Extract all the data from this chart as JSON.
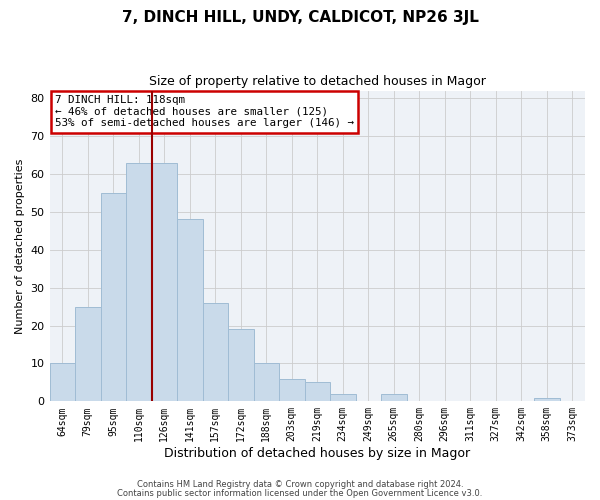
{
  "title": "7, DINCH HILL, UNDY, CALDICOT, NP26 3JL",
  "subtitle": "Size of property relative to detached houses in Magor",
  "xlabel": "Distribution of detached houses by size in Magor",
  "ylabel": "Number of detached properties",
  "bar_labels": [
    "64sqm",
    "79sqm",
    "95sqm",
    "110sqm",
    "126sqm",
    "141sqm",
    "157sqm",
    "172sqm",
    "188sqm",
    "203sqm",
    "219sqm",
    "234sqm",
    "249sqm",
    "265sqm",
    "280sqm",
    "296sqm",
    "311sqm",
    "327sqm",
    "342sqm",
    "358sqm",
    "373sqm"
  ],
  "bar_values": [
    10,
    25,
    55,
    63,
    63,
    48,
    26,
    19,
    10,
    6,
    5,
    2,
    0,
    2,
    0,
    0,
    0,
    0,
    0,
    1,
    0
  ],
  "bar_color": "#c9daea",
  "bar_edgecolor": "#a0bcd4",
  "vline_color": "#990000",
  "annotation_title": "7 DINCH HILL: 118sqm",
  "annotation_line2": "← 46% of detached houses are smaller (125)",
  "annotation_line3": "53% of semi-detached houses are larger (146) →",
  "annotation_box_edgecolor": "#cc0000",
  "ylim": [
    0,
    82
  ],
  "yticks": [
    0,
    10,
    20,
    30,
    40,
    50,
    60,
    70,
    80
  ],
  "footer1": "Contains HM Land Registry data © Crown copyright and database right 2024.",
  "footer2": "Contains public sector information licensed under the Open Government Licence v3.0.",
  "bg_color": "#f0f4f8"
}
